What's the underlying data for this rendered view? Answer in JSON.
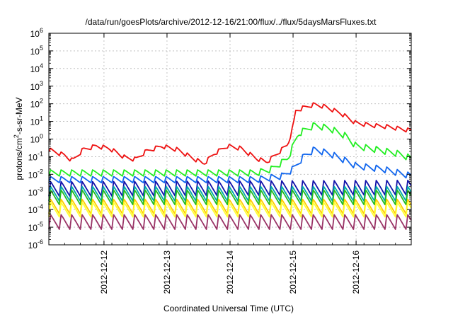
{
  "chart_data": {
    "type": "line",
    "title": "/data/run/goesPlots/archive/2012-12-16/21:00/flux/../flux/5daysMarsFluxes.txt",
    "xlabel": "Coordinated Universal Time (UTC)",
    "ylabel": "protons/cm²-s-sr-MeV",
    "ylabel_parts": {
      "before": "protons/cm",
      "sup": "2",
      "after": "-s-sr-MeV"
    },
    "yscale": "log",
    "ylim": [
      1e-06,
      1000000.0
    ],
    "xlim": [
      "2012-12-11 03:00",
      "2012-12-16 21:00"
    ],
    "grid": true,
    "x_ticks": [
      "2012-12-12",
      "2012-12-13",
      "2012-12-14",
      "2012-12-15",
      "2012-12-16"
    ],
    "y_ticks": [
      {
        "base": "10",
        "exp": "-6",
        "value": 1e-06
      },
      {
        "base": "10",
        "exp": "-5",
        "value": 1e-05
      },
      {
        "base": "10",
        "exp": "-4",
        "value": 0.0001
      },
      {
        "base": "10",
        "exp": "-3",
        "value": 0.001
      },
      {
        "base": "10",
        "exp": "-2",
        "value": 0.01
      },
      {
        "base": "10",
        "exp": "-1",
        "value": 0.1
      },
      {
        "base": "10",
        "exp": "0",
        "value": 1
      },
      {
        "base": "10",
        "exp": "1",
        "value": 10
      },
      {
        "base": "10",
        "exp": "2",
        "value": 100
      },
      {
        "base": "10",
        "exp": "3",
        "value": 1000
      },
      {
        "base": "10",
        "exp": "4",
        "value": 10000
      },
      {
        "base": "10",
        "exp": "5",
        "value": 100000
      },
      {
        "base": "10",
        "exp": "6",
        "value": 1000000
      }
    ],
    "series": [
      {
        "color": "#ee1111",
        "values": [
          [
            "2012-12-11 03:00",
            0.25
          ],
          [
            "2012-12-11 09:00",
            0.12
          ],
          [
            "2012-12-11 12:00",
            0.06
          ],
          [
            "2012-12-11 16:00",
            0.25
          ],
          [
            "2012-12-11 21:00",
            0.4
          ],
          [
            "2012-12-12 02:00",
            0.3
          ],
          [
            "2012-12-12 08:00",
            0.09
          ],
          [
            "2012-12-12 12:00",
            0.07
          ],
          [
            "2012-12-12 16:00",
            0.2
          ],
          [
            "2012-12-12 22:00",
            0.4
          ],
          [
            "2012-12-13 04:00",
            0.25
          ],
          [
            "2012-12-13 10:00",
            0.08
          ],
          [
            "2012-12-13 14:00",
            0.04
          ],
          [
            "2012-12-13 18:00",
            0.15
          ],
          [
            "2012-12-13 23:00",
            0.4
          ],
          [
            "2012-12-14 04:00",
            0.3
          ],
          [
            "2012-12-14 10:00",
            0.08
          ],
          [
            "2012-12-14 14:00",
            0.05
          ],
          [
            "2012-12-14 18:00",
            0.15
          ],
          [
            "2012-12-14 22:00",
            0.5
          ],
          [
            "2012-12-15 00:00",
            5
          ],
          [
            "2012-12-15 01:00",
            40
          ],
          [
            "2012-12-15 04:00",
            60
          ],
          [
            "2012-12-15 08:00",
            90
          ],
          [
            "2012-12-15 12:00",
            70
          ],
          [
            "2012-12-15 18:00",
            30
          ],
          [
            "2012-12-16 00:00",
            8
          ],
          [
            "2012-12-16 06:00",
            6
          ],
          [
            "2012-12-16 12:00",
            5
          ],
          [
            "2012-12-16 21:00",
            3
          ]
        ]
      },
      {
        "color": "#22ee22",
        "values": [
          [
            "2012-12-11 03:00",
            0.012
          ],
          [
            "2012-12-14 10:00",
            0.012
          ],
          [
            "2012-12-14 16:00",
            0.02
          ],
          [
            "2012-12-14 22:00",
            0.08
          ],
          [
            "2012-12-15 00:00",
            0.4
          ],
          [
            "2012-12-15 02:00",
            2
          ],
          [
            "2012-12-15 08:00",
            6
          ],
          [
            "2012-12-15 14:00",
            4
          ],
          [
            "2012-12-15 20:00",
            1.5
          ],
          [
            "2012-12-16 00:00",
            0.4
          ],
          [
            "2012-12-16 08:00",
            0.25
          ],
          [
            "2012-12-16 16:00",
            0.15
          ],
          [
            "2012-12-16 21:00",
            0.08
          ]
        ]
      },
      {
        "color": "#1166ee",
        "values": [
          [
            "2012-12-11 03:00",
            0.005
          ],
          [
            "2012-12-14 10:00",
            0.005
          ],
          [
            "2012-12-14 20:00",
            0.008
          ],
          [
            "2012-12-15 00:00",
            0.02
          ],
          [
            "2012-12-15 04:00",
            0.1
          ],
          [
            "2012-12-15 08:00",
            0.25
          ],
          [
            "2012-12-15 14:00",
            0.15
          ],
          [
            "2012-12-15 20:00",
            0.06
          ],
          [
            "2012-12-16 00:00",
            0.03
          ],
          [
            "2012-12-16 10:00",
            0.02
          ],
          [
            "2012-12-16 21:00",
            0.008
          ]
        ]
      },
      {
        "color": "#1111aa",
        "values": [
          [
            "2012-12-11 03:00",
            0.0015
          ],
          [
            "2012-12-16 21:00",
            0.0018
          ]
        ]
      },
      {
        "color": "#00aaaa",
        "values": [
          [
            "2012-12-11 03:00",
            0.0008
          ],
          [
            "2012-12-16 21:00",
            0.0008
          ]
        ]
      },
      {
        "color": "#22bb22",
        "values": [
          [
            "2012-12-11 03:00",
            0.0005
          ],
          [
            "2012-12-16 21:00",
            0.0005
          ]
        ]
      },
      {
        "color": "#ffcc00",
        "values": [
          [
            "2012-12-11 03:00",
            0.00015
          ],
          [
            "2012-12-16 21:00",
            0.00015
          ]
        ]
      },
      {
        "color": "#ffff33",
        "values": [
          [
            "2012-12-11 03:00",
            0.0001
          ],
          [
            "2012-12-16 21:00",
            0.0001
          ]
        ]
      },
      {
        "color": "#993366",
        "values": [
          [
            "2012-12-11 03:00",
            2e-05
          ],
          [
            "2012-12-16 21:00",
            2e-05
          ]
        ]
      }
    ]
  }
}
